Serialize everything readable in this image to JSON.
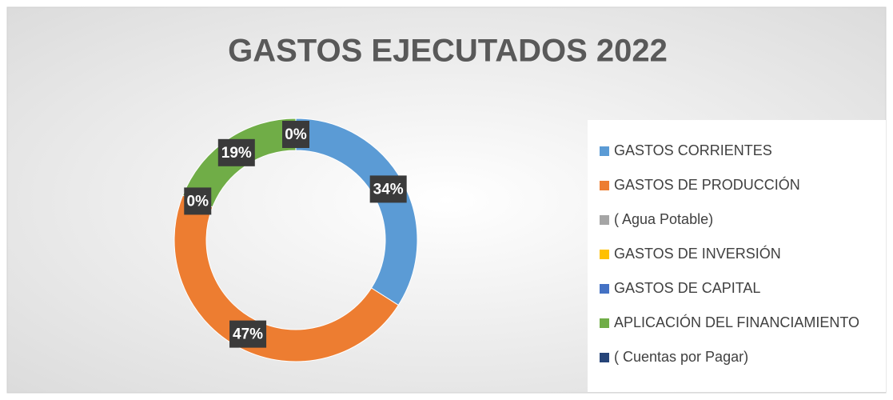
{
  "chart_data": {
    "type": "doughnut",
    "title": "GASTOS  EJECUTADOS 2022",
    "categories": [
      "GASTOS CORRIENTES",
      "GASTOS DE PRODUCCIÓN",
      "( Agua Potable)",
      "GASTOS DE INVERSIÓN",
      "GASTOS DE CAPITAL",
      "APLICACIÓN DEL FINANCIAMIENTO",
      "( Cuentas por Pagar)"
    ],
    "values": [
      34,
      47,
      0,
      0,
      0,
      19,
      0
    ],
    "value_labels": [
      "34%",
      "47%",
      "0%",
      null,
      null,
      "19%",
      "0%"
    ],
    "colors": [
      "#5b9bd5",
      "#ed7d31",
      "#a5a5a5",
      "#ffc000",
      "#4472c4",
      "#70ad47",
      "#264478"
    ],
    "legend": "right"
  }
}
